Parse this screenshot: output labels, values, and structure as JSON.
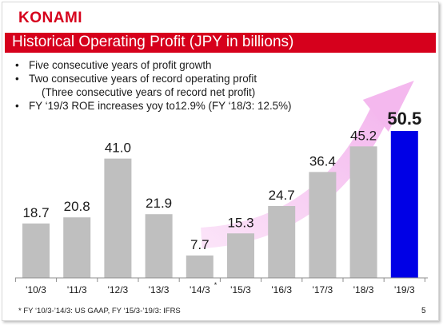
{
  "header": {
    "logo": "KONAMI",
    "title": "Historical Operating Profit (JPY in billions)"
  },
  "bullets": [
    "Five consecutive years of profit growth",
    "Two consecutive years of record operating profit",
    "(Three consecutive years of record net profit)",
    "FY ‘19/3 ROE increases yoy to12.9% (FY ‘18/3: 12.5%)"
  ],
  "footnote": "* FY ‘10/3-’14/3: US GAAP, FY ‘15/3-’19/3: IFRS",
  "page_number": "5",
  "colors": {
    "brand_red": "#d6001c",
    "bar_gray": "#bfbfbf",
    "bar_highlight": "#0000e6",
    "arrow_pink": "#f4b8ee"
  },
  "chart_data": {
    "type": "bar",
    "categories": [
      "'10/3",
      "'11/3",
      "'12/3",
      "'13/3",
      "'14/3",
      "'15/3",
      "'16/3",
      "'17/3",
      "'18/3",
      "'19/3"
    ],
    "category_markers": [
      "",
      "",
      "",
      "",
      "*",
      "",
      "",
      "",
      "",
      ""
    ],
    "values": [
      18.7,
      20.8,
      41.0,
      21.9,
      7.7,
      15.3,
      24.7,
      36.4,
      45.2,
      50.5
    ],
    "value_labels": [
      "18.7",
      "20.8",
      "41.0",
      "21.9",
      "7.7",
      "15.3",
      "24.7",
      "36.4",
      "45.2",
      "50.5"
    ],
    "highlight_index": 9,
    "trend_arrow": {
      "from_category": "'14/3",
      "to_category": "'19/3"
    },
    "ylim": [
      0,
      50.5
    ],
    "grid": false,
    "legend": "none"
  }
}
